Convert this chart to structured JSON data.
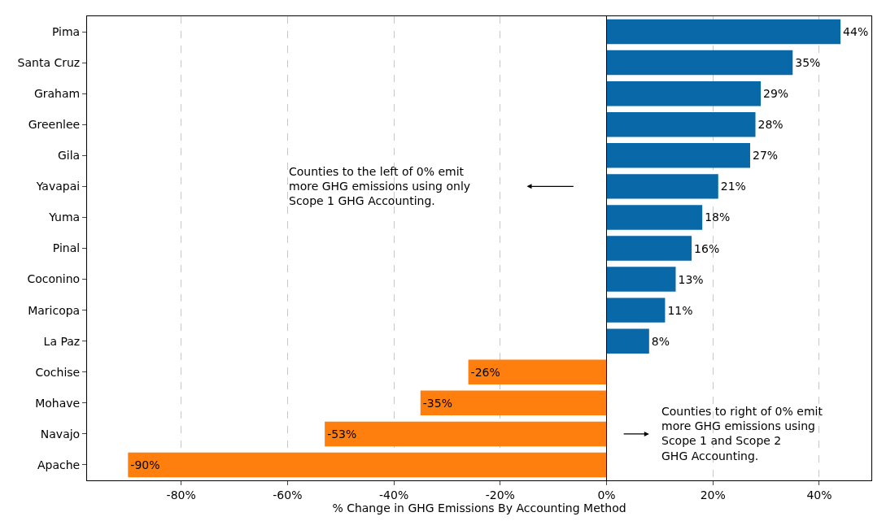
{
  "chart_data": {
    "type": "bar",
    "orientation": "horizontal",
    "xlabel": "% Change in GHG Emissions By Accounting Method",
    "categories": [
      "Pima",
      "Santa Cruz",
      "Graham",
      "Greenlee",
      "Gila",
      "Yavapai",
      "Yuma",
      "Pinal",
      "Coconino",
      "Maricopa",
      "La Paz",
      "Cochise",
      "Mohave",
      "Navajo",
      "Apache"
    ],
    "values": [
      44,
      35,
      29,
      28,
      27,
      21,
      18,
      16,
      13,
      11,
      8,
      -26,
      -35,
      -53,
      -90
    ],
    "value_labels": [
      "44%",
      "35%",
      "29%",
      "28%",
      "27%",
      "21%",
      "18%",
      "16%",
      "13%",
      "11%",
      "8%",
      "-26%",
      "-35%",
      "-53%",
      "-90%"
    ],
    "colors": [
      "#0868a8",
      "#0868a8",
      "#0868a8",
      "#0868a8",
      "#0868a8",
      "#0868a8",
      "#0868a8",
      "#0868a8",
      "#0868a8",
      "#0868a8",
      "#0868a8",
      "#ff7f0e",
      "#ff7f0e",
      "#ff7f0e",
      "#ff7f0e"
    ],
    "xlim": [
      -97.7,
      49.8
    ],
    "xticks": [
      {
        "value": -80,
        "label": "-80%"
      },
      {
        "value": -60,
        "label": "-60%"
      },
      {
        "value": -40,
        "label": "-40%"
      },
      {
        "value": -20,
        "label": "-20%"
      },
      {
        "value": 0,
        "label": "0%"
      },
      {
        "value": 20,
        "label": "20%"
      },
      {
        "value": 40,
        "label": "40%"
      }
    ],
    "grid": "x",
    "ref_lines": [
      {
        "axis": "x",
        "value": 0,
        "color": "#000000"
      }
    ],
    "annotations": [
      "Counties to the left of 0% emit\nmore GHG emissions using only\nScope 1 GHG Accounting.",
      "Counties to right of 0% emit\nmore GHG emissions using\nScope 1 and Scope 2\nGHG Accounting."
    ]
  }
}
